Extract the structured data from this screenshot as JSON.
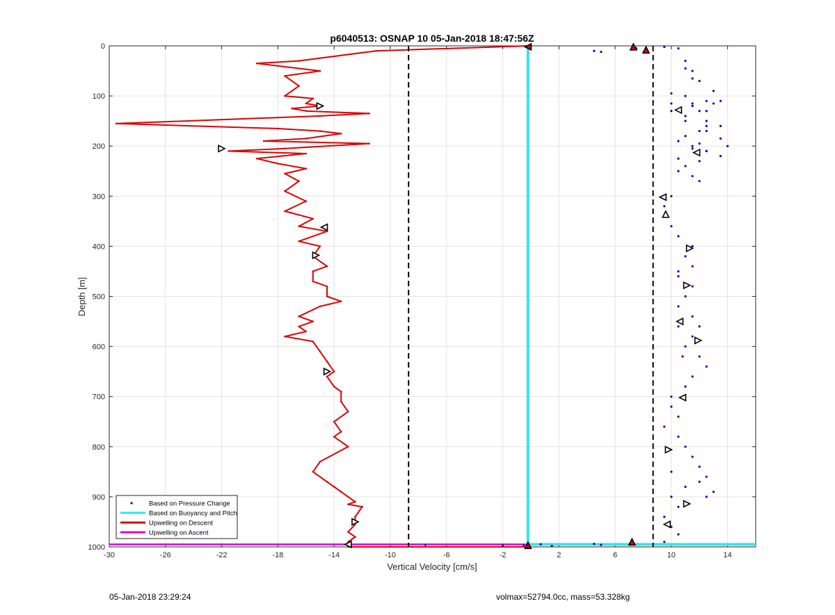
{
  "chart_data": {
    "type": "line",
    "title": "p6040513: OSNAP 10 05-Jan-2018 18:47:56Z",
    "xlabel": "Vertical Velocity [cm/s]",
    "ylabel": "Depth [m]",
    "xlim": [
      -30,
      16
    ],
    "ylim": [
      0,
      1000
    ],
    "y_reversed": true,
    "grid": true,
    "xticks": [
      -30,
      -26,
      -22,
      -18,
      -14,
      -10,
      -6,
      -2,
      2,
      6,
      10,
      14
    ],
    "yticks": [
      0,
      100,
      200,
      300,
      400,
      500,
      600,
      700,
      800,
      900,
      1000
    ],
    "xtick_labels": [
      "-30",
      "-26",
      "-22",
      "-18",
      "-14",
      "-10",
      "-6",
      "-2",
      "2",
      "6",
      "10",
      "14"
    ],
    "ytick_labels": [
      "0",
      "100",
      "200",
      "300",
      "400",
      "500",
      "600",
      "700",
      "800",
      "900",
      "1000"
    ],
    "legend_position": "bottom-left",
    "legend": [
      {
        "label": "Based on Pressure Change",
        "color": "#0000cc",
        "style": "dot"
      },
      {
        "label": "Based on Buoyancy and Pitch",
        "color": "#33e6e6",
        "style": "line"
      },
      {
        "label": "Upwelling on Descent",
        "color": "#dd0000",
        "style": "line"
      },
      {
        "label": "Upwelling on Ascent",
        "color": "#dd00dd",
        "style": "line"
      }
    ],
    "reference_lines": {
      "x": [
        -8.7,
        8.7
      ],
      "style": "dashed",
      "color": "#000000"
    },
    "series": [
      {
        "name": "Upwelling on Descent",
        "color": "#dd0000",
        "x": [
          -0.2,
          -11,
          -16.5,
          -19.5,
          -15,
          -17.5,
          -16.5,
          -17.5,
          -15.5,
          -16,
          -15,
          -17,
          -16,
          -11.5,
          -15,
          -29.5,
          -18,
          -15,
          -13.5,
          -16,
          -19,
          -11.5,
          -17.5,
          -21.5,
          -16,
          -19.5,
          -18,
          -16,
          -17.5,
          -16.5,
          -17.5,
          -16,
          -17.5,
          -15.5,
          -16.5,
          -14.5,
          -16.5,
          -15,
          -15.5,
          -14.5,
          -15.5,
          -15.5,
          -14.5,
          -14.5,
          -13.5,
          -15,
          -16.5,
          -15.5,
          -16.5,
          -16,
          -17.5,
          -15.5,
          -15,
          -14.5,
          -14,
          -14.5,
          -14,
          -13.5,
          -13.5,
          -13,
          -14,
          -13.5,
          -14,
          -13,
          -15,
          -15.5,
          -14.5,
          -14,
          -13.5,
          -12.5,
          -13,
          -12,
          -12.5,
          -12.5,
          -13,
          -12.5,
          -13,
          -13,
          -13,
          -0.2
        ],
        "y": [
          0,
          10,
          30,
          35,
          50,
          60,
          80,
          100,
          105,
          115,
          120,
          125,
          130,
          135,
          140,
          155,
          165,
          170,
          175,
          185,
          190,
          195,
          205,
          210,
          215,
          225,
          235,
          245,
          255,
          270,
          290,
          310,
          330,
          345,
          360,
          370,
          390,
          400,
          420,
          440,
          450,
          470,
          480,
          500,
          510,
          520,
          540,
          550,
          560,
          570,
          580,
          590,
          610,
          630,
          650,
          660,
          680,
          690,
          710,
          730,
          750,
          770,
          780,
          800,
          830,
          850,
          870,
          880,
          890,
          910,
          915,
          920,
          940,
          955,
          970,
          980,
          990,
          995,
          1000,
          1000
        ]
      },
      {
        "name": "Upwelling on Ascent",
        "color": "#dd00dd",
        "x": [
          -30,
          16
        ],
        "y": [
          995,
          995
        ]
      },
      {
        "name": "Based on Buoyancy and Pitch",
        "color": "#33e6e6",
        "x": [
          -0.2,
          -0.2,
          -0.2,
          16
        ],
        "y": [
          0,
          250,
          995,
          995
        ]
      },
      {
        "name": "Based on Pressure Change",
        "color": "#0000cc",
        "x": [
          10.5,
          11,
          11.5,
          12,
          13,
          12.5,
          11.5,
          10,
          11,
          12.5,
          13.5,
          12,
          11,
          10.5,
          11.5,
          12.5,
          13.5,
          12,
          11,
          10.5,
          11.5,
          12,
          10,
          9.5,
          9.5,
          10,
          10.5,
          11.5,
          11,
          11.5,
          10.5,
          11.5,
          11,
          10.5,
          11.5,
          12,
          11.5,
          11,
          12,
          12.5,
          11.5,
          11,
          10,
          10,
          10.5,
          9.5,
          10.5,
          11,
          11.5,
          12,
          12.5,
          11,
          10,
          10.5,
          9.5,
          10,
          10.5,
          9.5,
          10,
          12,
          13,
          12.5,
          11,
          10,
          10,
          13.5,
          14,
          12.5,
          11.5,
          10.5,
          12,
          12.5,
          12.5,
          12,
          13,
          13.5,
          11.5,
          11,
          11.5,
          12.5,
          11,
          10.5,
          10.5,
          10.8
        ],
        "y": [
          5,
          30,
          50,
          70,
          90,
          110,
          120,
          130,
          140,
          150,
          160,
          170,
          180,
          190,
          200,
          210,
          220,
          230,
          240,
          250,
          260,
          270,
          300,
          320,
          340,
          360,
          380,
          400,
          420,
          440,
          460,
          480,
          500,
          520,
          540,
          560,
          580,
          600,
          620,
          640,
          660,
          680,
          700,
          720,
          740,
          760,
          780,
          800,
          820,
          840,
          860,
          880,
          900,
          920,
          940,
          960,
          975,
          990,
          850,
          870,
          890,
          900,
          100,
          115,
          95,
          185,
          200,
          210,
          205,
          225,
          195,
          170,
          160,
          130,
          115,
          110,
          65,
          45,
          115,
          130,
          150,
          450,
          560,
          620
        ]
      },
      {
        "name": "",
        "color": "#0000cc",
        "x": [
          4.5,
          5,
          7.5,
          9.5,
          0.7,
          1.5,
          -0.5,
          -7.5,
          -2,
          4.5,
          5
        ],
        "y": [
          10,
          12,
          5,
          2,
          995,
          998,
          997,
          996,
          997,
          994,
          996
        ]
      }
    ],
    "markers": [
      {
        "x": -0.2,
        "y": 2,
        "shape": "left",
        "fill": "#dd0000"
      },
      {
        "x": 7.3,
        "y": 2,
        "shape": "up",
        "fill": "#dd0000"
      },
      {
        "x": 8.2,
        "y": 8,
        "shape": "up",
        "fill": "#dd0000"
      },
      {
        "x": -15,
        "y": 120,
        "shape": "right",
        "fill": "#ffffff"
      },
      {
        "x": -22,
        "y": 205,
        "shape": "right",
        "fill": "#ffffff"
      },
      {
        "x": -14.7,
        "y": 362,
        "shape": "left",
        "fill": "#ffffff"
      },
      {
        "x": -15.3,
        "y": 418,
        "shape": "right",
        "fill": "#ffffff"
      },
      {
        "x": -14.5,
        "y": 650,
        "shape": "right",
        "fill": "#ffffff"
      },
      {
        "x": -12.5,
        "y": 950,
        "shape": "right",
        "fill": "#ffffff"
      },
      {
        "x": -13,
        "y": 995,
        "shape": "left",
        "fill": "#ffffff"
      },
      {
        "x": -0.2,
        "y": 997,
        "shape": "up",
        "fill": "#dd0000"
      },
      {
        "x": 7.2,
        "y": 990,
        "shape": "up",
        "fill": "#dd0000"
      },
      {
        "x": 10.5,
        "y": 128,
        "shape": "left",
        "fill": "#ffffff"
      },
      {
        "x": 11.8,
        "y": 213,
        "shape": "left",
        "fill": "#ffffff"
      },
      {
        "x": 9.4,
        "y": 302,
        "shape": "left",
        "fill": "#ffffff"
      },
      {
        "x": 9.6,
        "y": 336,
        "shape": "up",
        "fill": "#ffffff"
      },
      {
        "x": 11.3,
        "y": 404,
        "shape": "right",
        "fill": "#ffffff"
      },
      {
        "x": 11.1,
        "y": 478,
        "shape": "right",
        "fill": "#ffffff"
      },
      {
        "x": 10.6,
        "y": 550,
        "shape": "left",
        "fill": "#ffffff"
      },
      {
        "x": 11.9,
        "y": 588,
        "shape": "right",
        "fill": "#ffffff"
      },
      {
        "x": 10.8,
        "y": 702,
        "shape": "left",
        "fill": "#ffffff"
      },
      {
        "x": 9.8,
        "y": 806,
        "shape": "right",
        "fill": "#ffffff"
      },
      {
        "x": 11.1,
        "y": 914,
        "shape": "right",
        "fill": "#ffffff"
      },
      {
        "x": 9.7,
        "y": 955,
        "shape": "left",
        "fill": "#ffffff"
      }
    ]
  },
  "footer": {
    "timestamp": "05-Jan-2018 23:29:24",
    "info": "volmax=52794.0cc, mass=53.328kg"
  }
}
